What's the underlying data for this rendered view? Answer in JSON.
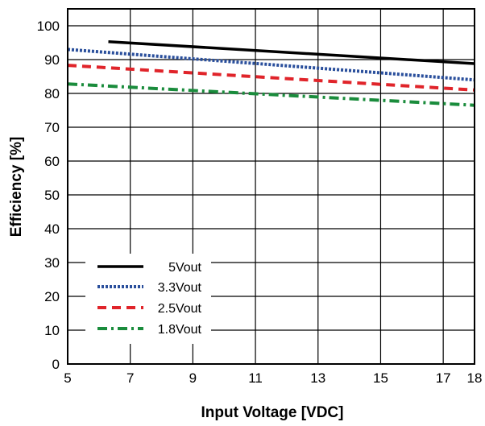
{
  "chart_data": {
    "type": "line",
    "xlabel": "Input Voltage [VDC]",
    "ylabel": "Efficiency [%]",
    "xlim": [
      5,
      18
    ],
    "ylim": [
      0,
      105
    ],
    "x_ticks": [
      5,
      7,
      9,
      11,
      13,
      15,
      17,
      18
    ],
    "y_ticks": [
      0,
      10,
      20,
      30,
      40,
      50,
      60,
      70,
      80,
      90,
      100
    ],
    "grid": true,
    "legend_position": "bottom-left",
    "series": [
      {
        "name": "5Vout",
        "color": "#000000",
        "dash": "solid",
        "x": [
          6.3,
          18
        ],
        "y": [
          95.3,
          88.8
        ]
      },
      {
        "name": "3.3Vout",
        "color": "#2a4f9c",
        "dash": "dotted",
        "x": [
          5,
          18
        ],
        "y": [
          93,
          84
        ]
      },
      {
        "name": "2.5Vout",
        "color": "#e0242a",
        "dash": "dashed",
        "x": [
          5,
          18
        ],
        "y": [
          88.3,
          81
        ]
      },
      {
        "name": "1.8Vout",
        "color": "#1a8c3c",
        "dash": "dashdot",
        "x": [
          5,
          18
        ],
        "y": [
          82.8,
          76.5
        ]
      }
    ]
  }
}
